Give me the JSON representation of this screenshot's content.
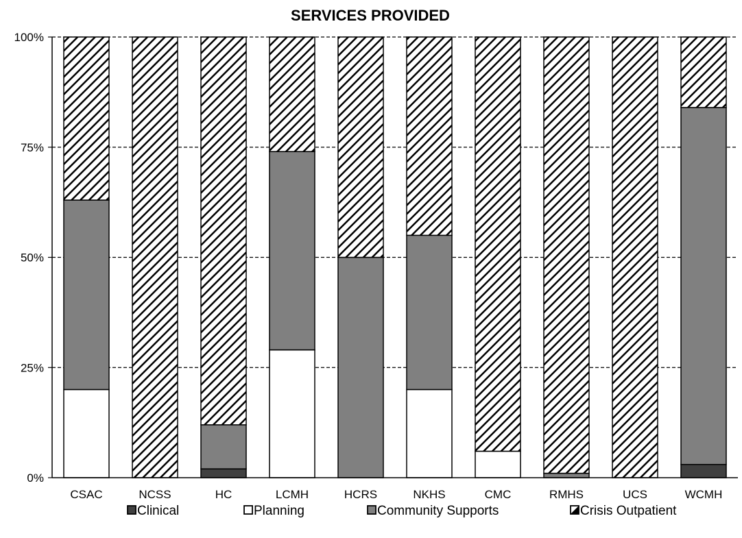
{
  "chart_data": {
    "type": "bar",
    "stacked": true,
    "normalized": true,
    "title": "SERVICES PROVIDED",
    "xlabel": "",
    "ylabel": "",
    "ylim": [
      0,
      100
    ],
    "yticks": [
      "0%",
      "25%",
      "50%",
      "75%",
      "100%"
    ],
    "grid": "horizontal dashed",
    "legend_position": "bottom",
    "categories": [
      "CSAC",
      "NCSS",
      "HC",
      "LCMH",
      "HCRS",
      "NKHS",
      "CMC",
      "RMHS",
      "UCS",
      "WCMH"
    ],
    "series": [
      {
        "name": "Clinical",
        "values": [
          0,
          0,
          2,
          0,
          0,
          0,
          0,
          0,
          0,
          3
        ],
        "color": "#404040",
        "pattern": "solid"
      },
      {
        "name": "Planning",
        "values": [
          20,
          0,
          0,
          29,
          0,
          20,
          6,
          0,
          0,
          0
        ],
        "color": "#ffffff",
        "pattern": "solid"
      },
      {
        "name": "Community Supports",
        "values": [
          43,
          0,
          10,
          45,
          50,
          35,
          0,
          1,
          0,
          81
        ],
        "color": "#808080",
        "pattern": "solid"
      },
      {
        "name": "Crisis Outpatient",
        "values": [
          37,
          100,
          88,
          26,
          50,
          45,
          94,
          99,
          100,
          16
        ],
        "color": "#000000",
        "pattern": "diagonal-hatch"
      }
    ]
  }
}
